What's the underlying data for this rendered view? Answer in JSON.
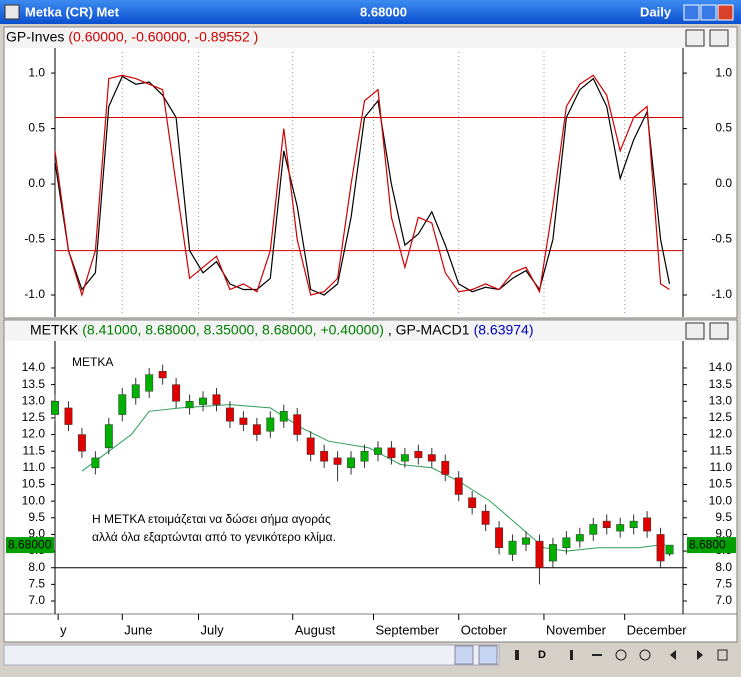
{
  "window": {
    "title": "Metka (CR) Met",
    "price": "8.68000",
    "period": "Daily",
    "toolbar": "D"
  },
  "chart_data": [
    {
      "type": "line",
      "header": {
        "name": "GP-Inves",
        "values": "(0.60000, -0.60000, -0.89552 )"
      },
      "x": [
        0,
        3,
        6,
        9,
        12,
        15,
        18,
        21,
        24,
        27,
        30,
        33,
        36,
        39,
        42,
        45,
        48,
        51,
        54,
        57,
        60,
        63,
        66,
        69,
        72,
        75,
        78,
        81,
        84,
        87,
        90,
        93,
        96,
        99,
        102,
        105,
        108,
        111,
        114,
        117,
        120,
        123,
        126,
        129,
        132,
        135,
        137
      ],
      "xlim": [
        0,
        140
      ],
      "ylim": [
        -1.18,
        1.19
      ],
      "yticks": [
        {
          "value": 1,
          "label": "1.0"
        },
        {
          "value": 0.5,
          "label": "0.5"
        },
        {
          "value": 0,
          "label": "0.0"
        },
        {
          "value": -0.5,
          "label": "-0.5"
        },
        {
          "value": -1,
          "label": "-1.0"
        }
      ],
      "hlines": [
        0.6,
        -0.6
      ],
      "hline_color": "#d00000",
      "grid": true,
      "series": [
        {
          "color": "#000000",
          "values": [
            0.2,
            -0.6,
            -0.95,
            -0.8,
            0.7,
            0.97,
            0.9,
            0.92,
            0.8,
            0.6,
            -0.6,
            -0.8,
            -0.7,
            -0.9,
            -0.95,
            -0.95,
            -0.85,
            0.3,
            -0.2,
            -0.95,
            -1.0,
            -0.9,
            -0.3,
            0.6,
            0.75,
            0.0,
            -0.55,
            -0.45,
            -0.25,
            -0.55,
            -0.9,
            -0.97,
            -0.93,
            -0.95,
            -0.85,
            -0.78,
            -0.95,
            -0.5,
            0.6,
            0.85,
            0.95,
            0.7,
            0.05,
            0.4,
            0.65,
            -0.5,
            -0.9
          ]
        },
        {
          "color": "#d00000",
          "values": [
            0.3,
            -0.6,
            -1.0,
            -0.6,
            0.95,
            0.98,
            0.95,
            0.9,
            0.85,
            0.0,
            -0.85,
            -0.75,
            -0.65,
            -0.95,
            -0.9,
            -0.97,
            -0.6,
            0.5,
            -0.5,
            -1.0,
            -0.97,
            -0.85,
            0.0,
            0.75,
            0.85,
            -0.3,
            -0.75,
            -0.3,
            -0.35,
            -0.8,
            -0.97,
            -0.95,
            -0.9,
            -0.95,
            -0.8,
            -0.75,
            -0.97,
            -0.2,
            0.7,
            0.9,
            0.98,
            0.8,
            0.3,
            0.6,
            0.7,
            -0.9,
            -0.95
          ]
        }
      ]
    },
    {
      "type": "candlestick",
      "header": {
        "name": "METKK",
        "values": "(8.41000, 8.68000, 8.35000, 8.68000, +0.40000)",
        "indicator": ", GP-MACD1",
        "indicator_value": "(8.63974)"
      },
      "x": [
        0,
        3,
        6,
        9,
        12,
        15,
        18,
        21,
        24,
        27,
        30,
        33,
        36,
        39,
        42,
        45,
        48,
        51,
        54,
        57,
        60,
        63,
        66,
        69,
        72,
        75,
        78,
        81,
        84,
        87,
        90,
        93,
        96,
        99,
        102,
        105,
        108,
        111,
        114,
        117,
        120,
        123,
        126,
        129,
        132,
        135,
        137
      ],
      "open": [
        12.6,
        12.8,
        12.0,
        11.0,
        11.6,
        12.6,
        13.1,
        13.3,
        13.9,
        13.5,
        12.8,
        12.9,
        13.2,
        12.8,
        12.5,
        12.3,
        12.1,
        12.4,
        12.6,
        11.9,
        11.5,
        11.3,
        11.0,
        11.2,
        11.4,
        11.6,
        11.2,
        11.5,
        11.4,
        11.2,
        10.7,
        10.1,
        9.7,
        9.2,
        8.4,
        8.7,
        8.8,
        8.2,
        8.6,
        8.8,
        9.0,
        9.4,
        9.1,
        9.2,
        9.5,
        9.0,
        8.41
      ],
      "high": [
        13.2,
        13.0,
        12.2,
        11.5,
        12.5,
        13.4,
        13.7,
        14.0,
        14.1,
        13.7,
        13.2,
        13.3,
        13.4,
        13.0,
        12.7,
        12.5,
        12.7,
        12.9,
        12.8,
        12.1,
        11.7,
        11.5,
        11.5,
        11.7,
        11.8,
        11.8,
        11.6,
        11.7,
        11.6,
        11.4,
        10.9,
        10.3,
        9.9,
        9.4,
        9.0,
        9.1,
        9.0,
        8.9,
        9.1,
        9.2,
        9.5,
        9.6,
        9.5,
        9.6,
        9.7,
        9.2,
        8.68
      ],
      "low": [
        12.4,
        12.1,
        11.3,
        10.8,
        11.4,
        12.4,
        12.9,
        13.1,
        13.5,
        12.8,
        12.6,
        12.7,
        12.7,
        12.2,
        12.1,
        11.8,
        11.9,
        12.2,
        11.8,
        11.2,
        11.0,
        10.6,
        10.8,
        11.0,
        11.2,
        11.1,
        11.0,
        11.1,
        11.0,
        10.6,
        10.0,
        9.6,
        9.1,
        8.4,
        8.2,
        8.5,
        7.5,
        8.0,
        8.4,
        8.6,
        8.8,
        9.0,
        8.9,
        9.0,
        8.9,
        8.0,
        8.35
      ],
      "close": [
        13.0,
        12.3,
        11.5,
        11.3,
        12.3,
        13.2,
        13.5,
        13.8,
        13.7,
        13.0,
        13.0,
        13.1,
        12.9,
        12.4,
        12.3,
        12.0,
        12.5,
        12.7,
        12.0,
        11.4,
        11.2,
        11.1,
        11.3,
        11.5,
        11.6,
        11.3,
        11.4,
        11.3,
        11.2,
        10.8,
        10.2,
        9.8,
        9.3,
        8.6,
        8.8,
        8.9,
        8.0,
        8.7,
        8.9,
        9.0,
        9.3,
        9.2,
        9.3,
        9.4,
        9.1,
        8.2,
        8.68
      ],
      "up_color": "#00b000",
      "down_color": "#e00000",
      "ma": {
        "color": "#2e9e5a",
        "x": [
          6,
          17,
          21,
          28,
          39,
          48,
          55,
          61,
          70,
          77,
          84,
          90,
          97,
          103,
          109,
          114,
          121,
          130,
          136
        ],
        "values": [
          10.9,
          12.0,
          12.7,
          12.8,
          12.9,
          12.8,
          12.2,
          11.8,
          11.6,
          11.1,
          11.0,
          10.6,
          10.0,
          9.3,
          8.6,
          8.5,
          8.6,
          8.6,
          8.7
        ]
      },
      "xlim": [
        0,
        140
      ],
      "ylim": [
        6.67,
        14.69
      ],
      "yticks": [
        {
          "value": 14,
          "label": "14.0"
        },
        {
          "value": 13.5,
          "label": "13.5"
        },
        {
          "value": 13,
          "label": "13.0"
        },
        {
          "value": 12.5,
          "label": "12.5"
        },
        {
          "value": 12,
          "label": "12.0"
        },
        {
          "value": 11.5,
          "label": "11.5"
        },
        {
          "value": 11,
          "label": "11.0"
        },
        {
          "value": 10.5,
          "label": "10.5"
        },
        {
          "value": 10,
          "label": "10.0"
        },
        {
          "value": 9.5,
          "label": "9.5"
        },
        {
          "value": 9,
          "label": "9.0"
        },
        {
          "value": 8.5,
          "label": "8.5"
        },
        {
          "value": 8,
          "label": "8.0"
        },
        {
          "value": 7.5,
          "label": "7.5"
        },
        {
          "value": 7,
          "label": "7.0"
        }
      ],
      "xticks": [
        {
          "value": 0.7,
          "label": "y"
        },
        {
          "value": 15,
          "label": "June"
        },
        {
          "value": 32,
          "label": "July"
        },
        {
          "value": 53,
          "label": "August"
        },
        {
          "value": 71,
          "label": "September"
        },
        {
          "value": 90,
          "label": "October"
        },
        {
          "value": 109,
          "label": "November"
        },
        {
          "value": 127,
          "label": "December"
        }
      ],
      "hlines": [
        8.0
      ],
      "hline_color": "#000000",
      "last_value": 8.68,
      "last_value_labels": [
        "8.68000",
        "8.6800"
      ],
      "annotations": [
        "METKA",
        "Η ΜΕΤΚΑ ετοιμάζεται να δώσει σήμα αγοράς",
        "αλλά όλα εξαρτώνται από το γενικότερο κλίμα."
      ]
    }
  ]
}
